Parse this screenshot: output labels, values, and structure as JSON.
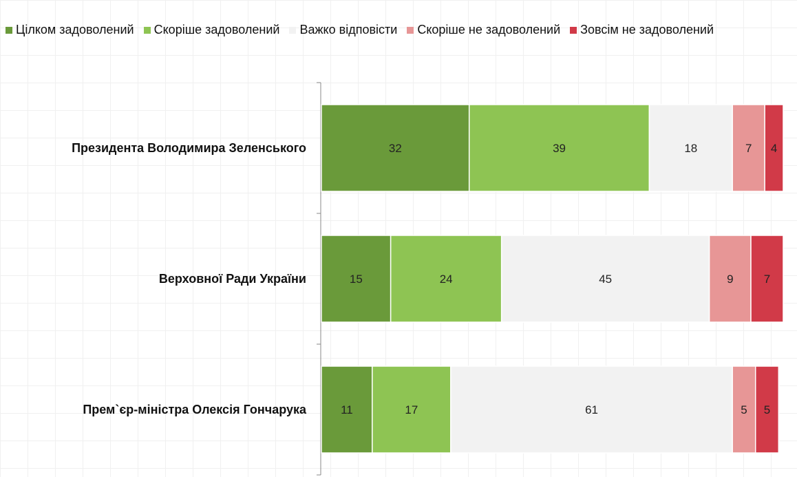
{
  "chart_data": {
    "type": "bar",
    "orientation": "horizontal",
    "stacked": true,
    "categories": [
      "Президента Володимира Зеленського",
      "Верховної Ради України",
      "Прем`єр-міністра Олексія Гончарука"
    ],
    "series": [
      {
        "name": "Цілком задоволений",
        "color": "#6a9a3a",
        "values": [
          32,
          15,
          11
        ]
      },
      {
        "name": "Скоріше задоволений",
        "color": "#8ec453",
        "values": [
          39,
          24,
          17
        ]
      },
      {
        "name": "Важко відповісти",
        "color": "#f2f2f2",
        "values": [
          18,
          45,
          61
        ]
      },
      {
        "name": "Скоріше не задоволений",
        "color": "#e79696",
        "values": [
          7,
          9,
          5
        ]
      },
      {
        "name": "Зовсім не задоволений",
        "color": "#d13a48",
        "values": [
          4,
          7,
          5
        ]
      }
    ],
    "xlim": [
      0,
      100
    ],
    "legend_position": "top",
    "title": "",
    "xlabel": "",
    "ylabel": ""
  }
}
